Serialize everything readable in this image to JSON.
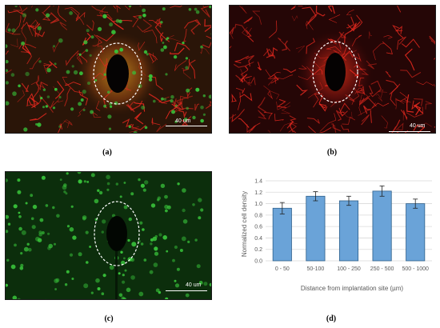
{
  "panels": {
    "a": {
      "caption": "(a)",
      "scale": "40 um"
    },
    "b": {
      "caption": "(b)",
      "scale": "40 um"
    },
    "c": {
      "caption": "(c)",
      "scale": "40 um"
    },
    "d": {
      "caption": "(d)"
    }
  },
  "colors": {
    "bar_fill": "#6aa3d8",
    "bar_stroke": "#2e5f8a",
    "grid": "#d9d9d9",
    "marker_red": "#e0281e",
    "marker_green": "#38c23a"
  },
  "chart_data": {
    "type": "bar",
    "categories": [
      "0 - 50",
      "50-100",
      "100 - 250",
      "250 - 500",
      "500 - 1000"
    ],
    "values": [
      0.92,
      1.13,
      1.05,
      1.22,
      1.0
    ],
    "errors": [
      0.1,
      0.08,
      0.08,
      0.09,
      0.08
    ],
    "title": "",
    "xlabel": "Distance from implantation site (µm)",
    "ylabel": "Normalized cell density",
    "ylim": [
      0,
      1.4
    ],
    "yticks": [
      "0.0",
      "0.2",
      "0.4",
      "0.6",
      "0.8",
      "1.0",
      "1.2",
      "1.4"
    ],
    "grid": true,
    "error_bars": true
  }
}
